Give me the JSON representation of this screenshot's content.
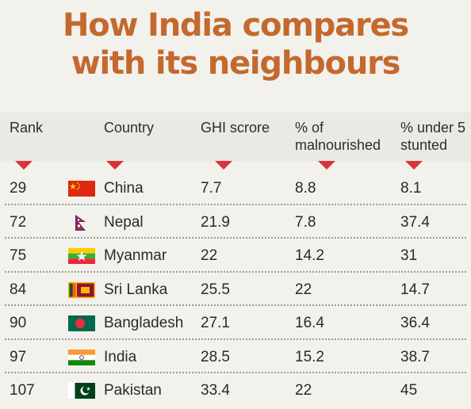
{
  "title": {
    "line1": "How India compares",
    "line2": "with its neighbours"
  },
  "colors": {
    "title": "#c4692e",
    "arrow": "#d8353a",
    "background": "#f3f1ec"
  },
  "chart_data": {
    "type": "table",
    "columns": [
      "Rank",
      "",
      "Country",
      "GHI scrore",
      "% of\nmalnourished",
      "% under 5\nstunted"
    ],
    "rows": [
      {
        "rank": "29",
        "flag": "china-flag-icon",
        "country": "China",
        "ghi": "7.7",
        "malnourished": "8.8",
        "stunted": "8.1"
      },
      {
        "rank": "72",
        "flag": "nepal-flag-icon",
        "country": "Nepal",
        "ghi": "21.9",
        "malnourished": "7.8",
        "stunted": "37.4"
      },
      {
        "rank": "75",
        "flag": "myanmar-flag-icon",
        "country": "Myanmar",
        "ghi": "22",
        "malnourished": "14.2",
        "stunted": "31"
      },
      {
        "rank": "84",
        "flag": "sri-lanka-flag-icon",
        "country": "Sri Lanka",
        "ghi": "25.5",
        "malnourished": "22",
        "stunted": "14.7"
      },
      {
        "rank": "90",
        "flag": "bangladesh-flag-icon",
        "country": "Bangladesh",
        "ghi": "27.1",
        "malnourished": "16.4",
        "stunted": "36.4"
      },
      {
        "rank": "97",
        "flag": "india-flag-icon",
        "country": "India",
        "ghi": "28.5",
        "malnourished": "15.2",
        "stunted": "38.7"
      },
      {
        "rank": "107",
        "flag": "pakistan-flag-icon",
        "country": "Pakistan",
        "ghi": "33.4",
        "malnourished": "22",
        "stunted": "45"
      }
    ]
  }
}
